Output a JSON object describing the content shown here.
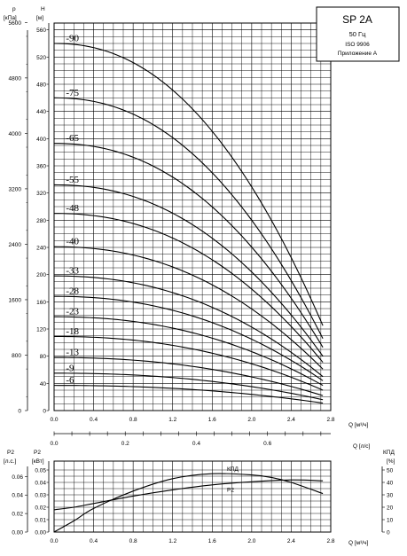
{
  "info_box": {
    "model": "SP 2A",
    "frequency": "50 Гц",
    "standard": "ISO 9906",
    "annex": "Приложение А"
  },
  "chart_data": [
    {
      "type": "line",
      "name": "head",
      "x_label": "Q [м³/ч]",
      "y_label_left_top": "p",
      "y_label_left_units": "[кПа]",
      "y_label_right_top": "H",
      "y_label_right_units": "[м]",
      "xlim": [
        0,
        2.8
      ],
      "ylim_m": [
        0,
        570
      ],
      "ylim_kpa": [
        0,
        5600
      ],
      "x_ticks": [
        "0.0",
        "0.4",
        "0.8",
        "1.2",
        "1.6",
        "2.0",
        "2.4",
        "2.8"
      ],
      "m_ticks": [
        "0",
        "40",
        "80",
        "120",
        "160",
        "200",
        "240",
        "280",
        "320",
        "360",
        "400",
        "440",
        "480",
        "520",
        "560"
      ],
      "kpa_ticks": [
        "0",
        "800",
        "1600",
        "2400",
        "3200",
        "4000",
        "4800",
        "5600"
      ],
      "secondary_x_label": "Q [л/с]",
      "secondary_x_ticks": [
        "0.0",
        "0.2",
        "0.4",
        "0.6"
      ],
      "series": [
        {
          "label": "-90",
          "h0": 540,
          "q_end": 2.72,
          "h_end": 125
        },
        {
          "label": "-75",
          "h0": 460,
          "q_end": 2.72,
          "h_end": 106
        },
        {
          "label": "-65",
          "h0": 393,
          "q_end": 2.72,
          "h_end": 93
        },
        {
          "label": "-55",
          "h0": 332,
          "q_end": 2.72,
          "h_end": 80
        },
        {
          "label": "-48",
          "h0": 290,
          "q_end": 2.72,
          "h_end": 71
        },
        {
          "label": "-40",
          "h0": 241,
          "q_end": 2.72,
          "h_end": 61
        },
        {
          "label": "-33",
          "h0": 198,
          "q_end": 2.72,
          "h_end": 50
        },
        {
          "label": "-28",
          "h0": 168,
          "q_end": 2.72,
          "h_end": 44
        },
        {
          "label": "-23",
          "h0": 138,
          "q_end": 2.72,
          "h_end": 37
        },
        {
          "label": "-18",
          "h0": 109,
          "q_end": 2.72,
          "h_end": 30
        },
        {
          "label": "-13",
          "h0": 78,
          "q_end": 2.72,
          "h_end": 22
        },
        {
          "label": "-9",
          "h0": 55,
          "q_end": 2.72,
          "h_end": 16
        },
        {
          "label": "-6",
          "h0": 37,
          "q_end": 2.72,
          "h_end": 11
        }
      ]
    },
    {
      "type": "line",
      "name": "power_efficiency",
      "x_label": "Q [м³/ч]",
      "xlim": [
        0,
        2.8
      ],
      "left_outer_label": "P2",
      "left_outer_units": "[л.с.]",
      "left_outer_ticks": [
        "0.00",
        "0.02",
        "0.04",
        "0.06"
      ],
      "left_outer_lim": [
        0,
        0.068
      ],
      "left_inner_label": "P2",
      "left_inner_units": "[кВт]",
      "left_inner_ticks": [
        "0.00",
        "0.01",
        "0.02",
        "0.03",
        "0.04",
        "0.05"
      ],
      "left_inner_lim": [
        0,
        0.05
      ],
      "right_label": "КПД",
      "right_units": "[%]",
      "right_ticks": [
        "0",
        "10",
        "20",
        "30",
        "40",
        "50"
      ],
      "right_lim": [
        0,
        50
      ],
      "series": [
        {
          "label": "P2",
          "axis": "kW",
          "x": [
            0.0,
            0.2,
            0.4,
            0.8,
            1.2,
            1.6,
            2.0,
            2.4,
            2.72
          ],
          "y": [
            0.018,
            0.02,
            0.023,
            0.029,
            0.034,
            0.038,
            0.0405,
            0.042,
            0.0413
          ]
        },
        {
          "label": "КПД",
          "axis": "percent",
          "x": [
            0.0,
            0.2,
            0.4,
            0.8,
            1.2,
            1.6,
            2.0,
            2.2,
            2.4,
            2.72
          ],
          "y": [
            0,
            9,
            19,
            33,
            43,
            47,
            46,
            44,
            40,
            31
          ]
        }
      ]
    }
  ]
}
